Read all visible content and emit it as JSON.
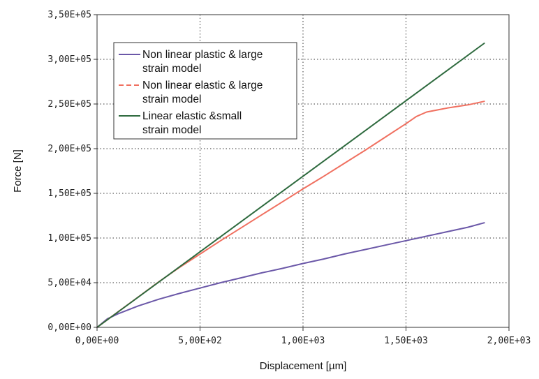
{
  "chart_data": {
    "type": "line",
    "xlabel": "Displacement [µm]",
    "ylabel": "Force [N]",
    "xlim": [
      0,
      2000
    ],
    "ylim": [
      0,
      350000
    ],
    "x_ticks": [
      0,
      500,
      1000,
      1500,
      2000
    ],
    "y_ticks": [
      0,
      50000,
      100000,
      150000,
      200000,
      250000,
      300000,
      350000
    ],
    "x_tick_labels": [
      "0,00E+00",
      "5,00E+02",
      "1,00E+03",
      "1,50E+03",
      "2,00E+03"
    ],
    "y_tick_labels": [
      "0,00E+00",
      "5,00E+04",
      "1,00E+05",
      "1,50E+05",
      "2,00E+05",
      "2,50E+05",
      "3,00E+05",
      "3,50E+05"
    ],
    "grid": true,
    "legend_position": "top-left",
    "series": [
      {
        "name": "Non linear plastic & large strain model",
        "legend_lines": [
          "Non linear plastic & large",
          "strain model"
        ],
        "color": "#6b58a8",
        "dash": "solid",
        "x": [
          0,
          50,
          100,
          200,
          300,
          400,
          500,
          600,
          700,
          800,
          900,
          1000,
          1100,
          1200,
          1300,
          1400,
          1500,
          1600,
          1700,
          1800,
          1880
        ],
        "y": [
          0,
          9500,
          15000,
          24000,
          31500,
          38000,
          44000,
          50000,
          55500,
          61000,
          66000,
          71500,
          76500,
          82000,
          87000,
          92000,
          97000,
          102000,
          107000,
          112000,
          117000
        ]
      },
      {
        "name": "Non linear elastic & large strain model",
        "legend_lines": [
          "Non linear elastic & large",
          "strain model"
        ],
        "color": "#f07060",
        "dash": "dashed",
        "x": [
          0,
          100,
          200,
          300,
          400,
          500,
          600,
          700,
          800,
          900,
          1000,
          1100,
          1200,
          1300,
          1400,
          1500,
          1550,
          1600,
          1700,
          1800,
          1880
        ],
        "y": [
          0,
          17000,
          34000,
          51000,
          67000,
          82000,
          97000,
          111500,
          126000,
          140500,
          155000,
          169000,
          183500,
          198000,
          213000,
          228000,
          236000,
          241000,
          245500,
          249000,
          253000
        ]
      },
      {
        "name": "Linear elastic &small strain model",
        "legend_lines": [
          "Linear elastic &small",
          "strain model"
        ],
        "color": "#2e6a3e",
        "dash": "solid",
        "x": [
          0,
          1880
        ],
        "y": [
          0,
          318000
        ]
      }
    ]
  }
}
